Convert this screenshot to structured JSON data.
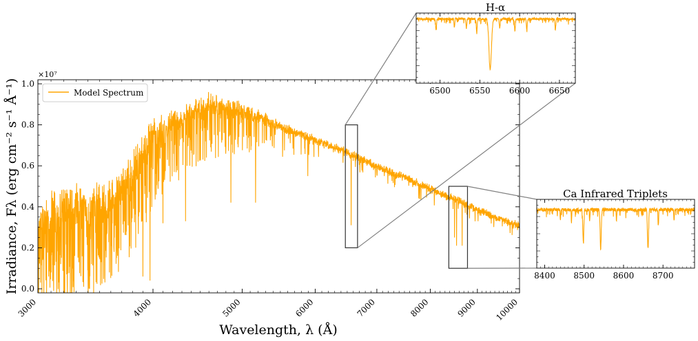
{
  "chart_data": [
    {
      "id": "main",
      "type": "line",
      "xscale": "log",
      "xlim": [
        3000,
        10000
      ],
      "ylim": [
        -0.02,
        1.02
      ],
      "x_ticks": [
        3000,
        4000,
        5000,
        6000,
        7000,
        8000,
        9000,
        10000
      ],
      "x_tick_labels": [
        "3000",
        "4000",
        "5000",
        "6000",
        "7000",
        "8000",
        "9000",
        "10000"
      ],
      "y_ticks": [
        0.0,
        0.2,
        0.4,
        0.6,
        0.8,
        1.0
      ],
      "y_tick_labels": [
        "0.0",
        "0.2",
        "0.4",
        "0.6",
        "0.8",
        "1.0"
      ],
      "y_offset_label": "×10⁷",
      "xlabel": "Wavelength, λ (Å)",
      "ylabel": "Irradiance, Fλ (erg cm⁻² s⁻¹ Å⁻¹)",
      "legend": {
        "placement": "upper-left",
        "entries": [
          "Model Spectrum"
        ]
      },
      "series_color": "#ffa500",
      "envelope": {
        "x": [
          3000,
          3200,
          3400,
          3600,
          3800,
          4000,
          4200,
          4400,
          4600,
          4800,
          5000,
          5200,
          5500,
          6000,
          6500,
          7000,
          7500,
          8000,
          8500,
          9000,
          9500,
          10000
        ],
        "upper": [
          0.42,
          0.55,
          0.5,
          0.56,
          0.68,
          0.86,
          0.88,
          0.92,
          0.97,
          0.93,
          0.92,
          0.88,
          0.82,
          0.75,
          0.69,
          0.62,
          0.57,
          0.51,
          0.46,
          0.41,
          0.36,
          0.33
        ],
        "continuum": [
          0.3,
          0.38,
          0.36,
          0.42,
          0.52,
          0.74,
          0.82,
          0.86,
          0.88,
          0.88,
          0.87,
          0.85,
          0.8,
          0.73,
          0.67,
          0.6,
          0.55,
          0.49,
          0.44,
          0.39,
          0.35,
          0.31
        ]
      },
      "absorption_lines": [
        {
          "x": 3020,
          "y": 0.03
        },
        {
          "x": 3100,
          "y": 0.08
        },
        {
          "x": 3430,
          "y": 0.12
        },
        {
          "x": 3650,
          "y": 0.15
        },
        {
          "x": 3900,
          "y": 0.06
        },
        {
          "x": 3970,
          "y": 0.04
        },
        {
          "x": 4100,
          "y": 0.32
        },
        {
          "x": 4340,
          "y": 0.33
        },
        {
          "x": 4860,
          "y": 0.42
        },
        {
          "x": 5170,
          "y": 0.42
        },
        {
          "x": 5890,
          "y": 0.55
        },
        {
          "x": 6563,
          "y": 0.31
        },
        {
          "x": 8498,
          "y": 0.25
        },
        {
          "x": 8542,
          "y": 0.21
        },
        {
          "x": 8662,
          "y": 0.21
        }
      ],
      "zoom_boxes": [
        {
          "xlim": [
            6470,
            6670
          ],
          "ylim": [
            0.2,
            0.8
          ],
          "inset": "H-alpha"
        },
        {
          "xlim": [
            8380,
            8780
          ],
          "ylim": [
            0.1,
            0.5
          ],
          "inset": "Ca"
        }
      ]
    },
    {
      "id": "H-alpha",
      "type": "line",
      "title": "H-α",
      "xlim": [
        6470,
        6670
      ],
      "x_ticks": [
        6500,
        6550,
        6600,
        6650
      ],
      "x_tick_labels": [
        "6500",
        "6550",
        "6600",
        "6650"
      ],
      "ylim": [
        0.2,
        0.8
      ],
      "continuum_level": 0.75,
      "absorption_lines": [
        {
          "x": 6563,
          "y": 0.32,
          "width": 2.2
        },
        {
          "x": 6495,
          "y": 0.66,
          "width": 0.8
        },
        {
          "x": 6518,
          "y": 0.68,
          "width": 0.7
        },
        {
          "x": 6533,
          "y": 0.67,
          "width": 0.7
        },
        {
          "x": 6546,
          "y": 0.64,
          "width": 0.8
        },
        {
          "x": 6575,
          "y": 0.67,
          "width": 0.7
        },
        {
          "x": 6594,
          "y": 0.65,
          "width": 0.8
        },
        {
          "x": 6609,
          "y": 0.66,
          "width": 0.8
        },
        {
          "x": 6645,
          "y": 0.67,
          "width": 0.8
        }
      ]
    },
    {
      "id": "Ca",
      "type": "line",
      "title": "Ca Infrared Triplets",
      "xlim": [
        8380,
        8780
      ],
      "x_ticks": [
        8400,
        8500,
        8600,
        8700
      ],
      "x_tick_labels": [
        "8400",
        "8500",
        "8600",
        "8700"
      ],
      "ylim": [
        0.1,
        0.5
      ],
      "continuum_level": 0.44,
      "absorption_lines": [
        {
          "x": 8498,
          "y": 0.25,
          "width": 1.8
        },
        {
          "x": 8542,
          "y": 0.21,
          "width": 2.0
        },
        {
          "x": 8662,
          "y": 0.21,
          "width": 2.0
        },
        {
          "x": 8440,
          "y": 0.38,
          "width": 1.0
        },
        {
          "x": 8468,
          "y": 0.37,
          "width": 1.0
        },
        {
          "x": 8514,
          "y": 0.38,
          "width": 1.0
        },
        {
          "x": 8582,
          "y": 0.38,
          "width": 1.0
        },
        {
          "x": 8688,
          "y": 0.35,
          "width": 1.2
        },
        {
          "x": 8728,
          "y": 0.37,
          "width": 1.0
        }
      ]
    }
  ]
}
